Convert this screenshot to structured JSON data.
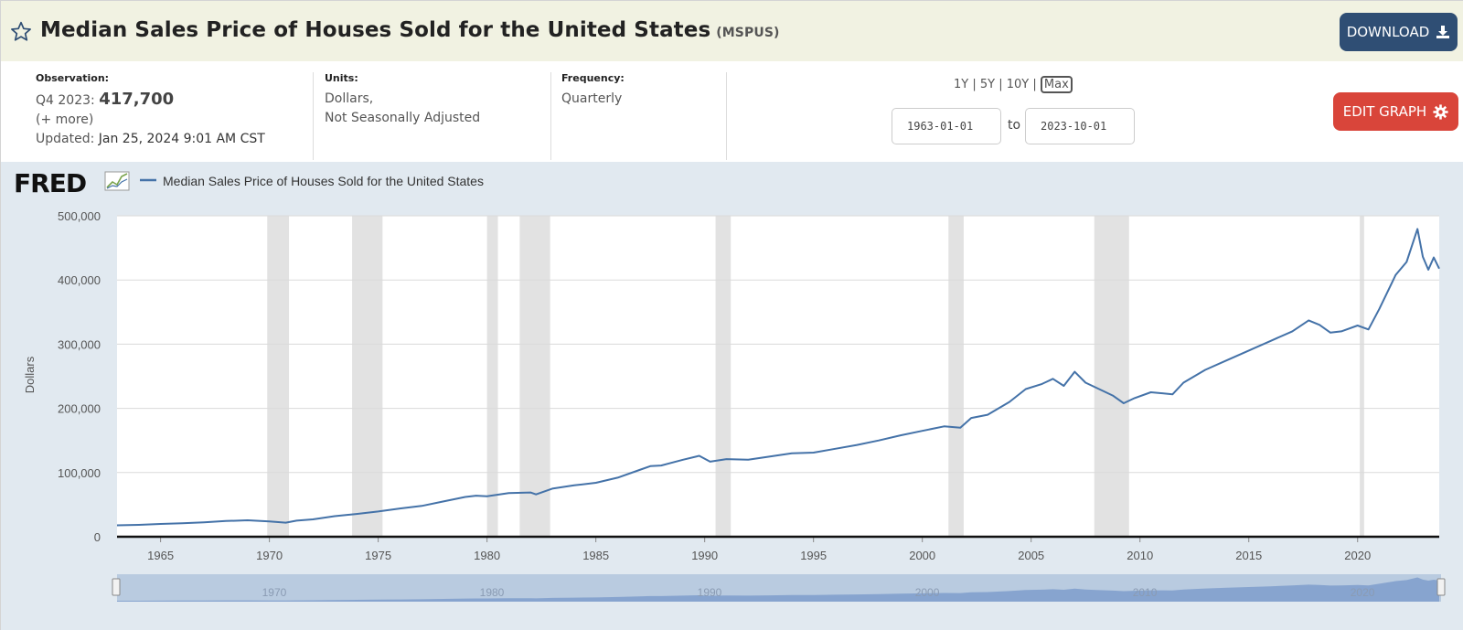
{
  "header": {
    "title": "Median Sales Price of Houses Sold for the United States",
    "series_id": "(MSPUS)",
    "download_label": "DOWNLOAD"
  },
  "meta": {
    "observation_label": "Observation:",
    "observation_period": "Q4 2023:",
    "observation_value": "417,700",
    "more_link": "(+ more)",
    "updated_label": "Updated:",
    "updated_value": "Jan 25, 2024 9:01 AM CST",
    "units_label": "Units:",
    "units_line1": "Dollars,",
    "units_line2": "Not Seasonally Adjusted",
    "frequency_label": "Frequency:",
    "frequency_value": "Quarterly"
  },
  "range": {
    "options": [
      "1Y",
      "5Y",
      "10Y",
      "Max"
    ],
    "selected": "Max",
    "start_date": "1963-01-01",
    "to_label": "to",
    "end_date": "2023-10-01",
    "edit_label": "EDIT GRAPH"
  },
  "brand": "FRED",
  "colors": {
    "line": "#4472a8",
    "recession": "#e2e2e2",
    "chart_bg": "#e1e9f0",
    "download": "#2f4e74",
    "edit": "#d9453a",
    "title_bg": "#f1f2e2"
  },
  "chart_data": {
    "type": "line",
    "title": "",
    "ylabel": "Dollars",
    "xlabel": "",
    "ylim": [
      0,
      500000
    ],
    "xlim": [
      1963.0,
      2023.75
    ],
    "yticks": [
      0,
      100000,
      200000,
      300000,
      400000,
      500000
    ],
    "ytick_labels": [
      "0",
      "100,000",
      "200,000",
      "300,000",
      "400,000",
      "500,000"
    ],
    "xticks": [
      1965,
      1970,
      1975,
      1980,
      1985,
      1990,
      1995,
      2000,
      2005,
      2010,
      2015,
      2020
    ],
    "xtick_labels": [
      "1965",
      "1970",
      "1975",
      "1980",
      "1985",
      "1990",
      "1995",
      "2000",
      "2005",
      "2010",
      "2015",
      "2020"
    ],
    "legend": "top-left",
    "grid": true,
    "recessions": [
      [
        1969.9,
        1970.9
      ],
      [
        1973.8,
        1975.2
      ],
      [
        1980.0,
        1980.5
      ],
      [
        1981.5,
        1982.9
      ],
      [
        1990.5,
        1991.2
      ],
      [
        2001.2,
        2001.9
      ],
      [
        2007.9,
        2009.5
      ],
      [
        2020.1,
        2020.3
      ]
    ],
    "navigator_ticks": [
      "1970",
      "1980",
      "1990",
      "2000",
      "2010",
      "2020"
    ],
    "series": [
      {
        "name": "Median Sales Price of Houses Sold for the United States",
        "points": [
          [
            1963.0,
            17800
          ],
          [
            1964.0,
            18500
          ],
          [
            1965.0,
            20000
          ],
          [
            1966.0,
            21000
          ],
          [
            1967.0,
            22300
          ],
          [
            1968.0,
            24500
          ],
          [
            1969.0,
            25600
          ],
          [
            1970.0,
            23900
          ],
          [
            1970.75,
            22000
          ],
          [
            1971.25,
            25000
          ],
          [
            1972.0,
            27000
          ],
          [
            1973.0,
            32000
          ],
          [
            1974.0,
            35500
          ],
          [
            1975.0,
            39300
          ],
          [
            1976.0,
            44000
          ],
          [
            1977.0,
            48000
          ],
          [
            1978.0,
            55000
          ],
          [
            1979.0,
            62000
          ],
          [
            1979.5,
            64000
          ],
          [
            1980.0,
            63000
          ],
          [
            1981.0,
            68000
          ],
          [
            1982.0,
            69000
          ],
          [
            1982.25,
            66000
          ],
          [
            1983.0,
            75000
          ],
          [
            1984.0,
            80000
          ],
          [
            1985.0,
            84000
          ],
          [
            1986.0,
            92000
          ],
          [
            1987.0,
            104000
          ],
          [
            1987.5,
            110000
          ],
          [
            1988.0,
            111000
          ],
          [
            1989.0,
            120000
          ],
          [
            1989.75,
            126000
          ],
          [
            1990.25,
            117000
          ],
          [
            1991.0,
            121000
          ],
          [
            1992.0,
            120000
          ],
          [
            1993.0,
            125000
          ],
          [
            1994.0,
            130000
          ],
          [
            1995.0,
            131000
          ],
          [
            1996.0,
            137000
          ],
          [
            1997.0,
            143000
          ],
          [
            1998.0,
            150000
          ],
          [
            1999.0,
            158000
          ],
          [
            2000.0,
            165000
          ],
          [
            2001.0,
            172000
          ],
          [
            2001.75,
            170000
          ],
          [
            2002.25,
            185000
          ],
          [
            2003.0,
            190000
          ],
          [
            2004.0,
            210000
          ],
          [
            2004.75,
            230000
          ],
          [
            2005.5,
            238000
          ],
          [
            2006.0,
            246000
          ],
          [
            2006.5,
            235000
          ],
          [
            2007.0,
            257000
          ],
          [
            2007.5,
            240000
          ],
          [
            2008.0,
            232000
          ],
          [
            2008.75,
            220000
          ],
          [
            2009.25,
            208000
          ],
          [
            2009.75,
            216000
          ],
          [
            2010.5,
            225000
          ],
          [
            2011.5,
            222000
          ],
          [
            2012.0,
            240000
          ],
          [
            2013.0,
            260000
          ],
          [
            2014.0,
            275000
          ],
          [
            2015.0,
            290000
          ],
          [
            2016.0,
            305000
          ],
          [
            2017.0,
            320000
          ],
          [
            2017.75,
            337000
          ],
          [
            2018.25,
            330000
          ],
          [
            2018.75,
            318000
          ],
          [
            2019.25,
            320000
          ],
          [
            2020.0,
            329000
          ],
          [
            2020.5,
            323000
          ],
          [
            2021.0,
            355000
          ],
          [
            2021.75,
            408000
          ],
          [
            2022.25,
            428000
          ],
          [
            2022.75,
            479500
          ],
          [
            2023.0,
            436000
          ],
          [
            2023.25,
            416000
          ],
          [
            2023.5,
            435000
          ],
          [
            2023.75,
            417700
          ]
        ]
      }
    ]
  }
}
